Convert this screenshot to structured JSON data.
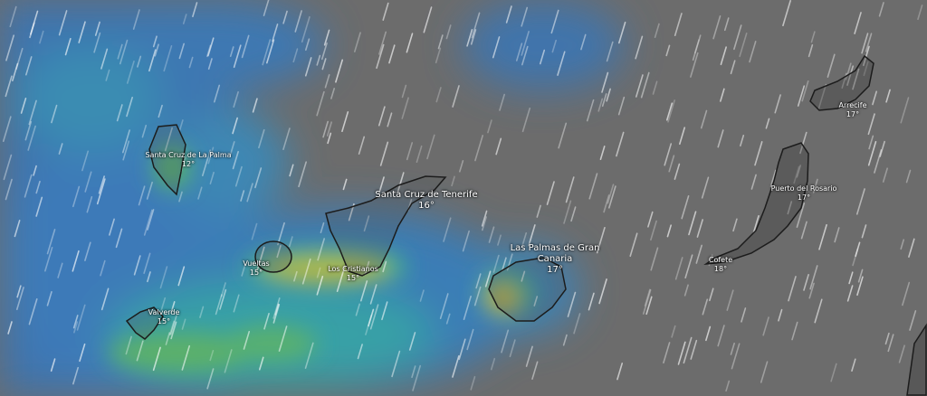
{
  "map": {
    "layer": "rain",
    "colors": {
      "sea_dry": "#6c6c6c",
      "light_rain": "#3a78b8",
      "moderate_rain": "#36a6a0",
      "heavy_rain": "#b5b53a",
      "land_outline": "#1c1c1c"
    },
    "places": [
      {
        "name": "Santa Cruz de La Palma",
        "temp": "12°"
      },
      {
        "name": "Santa Cruz de Tenerife",
        "temp": "16°"
      },
      {
        "name": "Vueltas",
        "temp": "15°"
      },
      {
        "name": "Los Cristianos",
        "temp": "15°"
      },
      {
        "name": "Valverde",
        "temp": "15°"
      },
      {
        "name": "Las Palmas de Gran Canaria",
        "temp": "17°"
      },
      {
        "name": "Cofete",
        "temp": "18°"
      },
      {
        "name": "Puerto del Rosario",
        "temp": "17°"
      },
      {
        "name": "Arrecife",
        "temp": "17°"
      }
    ]
  }
}
